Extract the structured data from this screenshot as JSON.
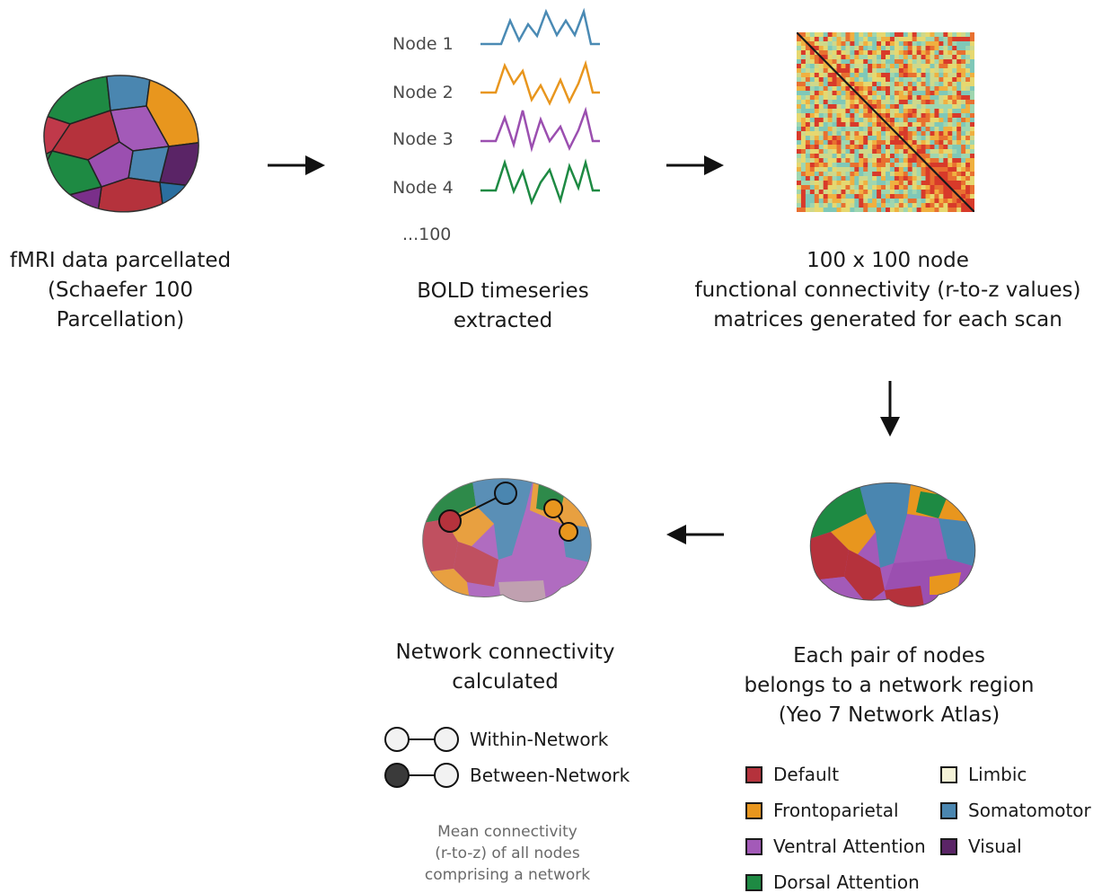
{
  "steps": {
    "parcellation": {
      "lines": [
        "fMRI data parcellated",
        "(Schaefer 100",
        "Parcellation)"
      ]
    },
    "timeseries": {
      "lines": [
        "BOLD timeseries",
        "extracted"
      ]
    },
    "matrix": {
      "lines": [
        "100 x 100 node",
        "functional connectivity (r-to-z values)",
        "matrices generated for each scan"
      ]
    },
    "atlas": {
      "lines": [
        "Each pair of nodes",
        "belongs to  a network region",
        "(Yeo 7 Network Atlas)"
      ]
    },
    "network": {
      "lines": [
        "Network connectivity",
        "calculated"
      ]
    }
  },
  "nodes": [
    {
      "label": "Node 1",
      "color": "#4a8ab4"
    },
    {
      "label": "Node 2",
      "color": "#e8961e"
    },
    {
      "label": "Node 3",
      "color": "#9b4fb0"
    },
    {
      "label": "Node 4",
      "color": "#1e8a43"
    }
  ],
  "nodes_more": "...100",
  "connectivity_legend": [
    {
      "label": "Within-Network",
      "type": "within"
    },
    {
      "label": "Between-Network",
      "type": "between"
    }
  ],
  "mean_note": [
    "Mean connectivity",
    "(r-to-z) of all nodes",
    "comprising a network"
  ],
  "network_legend": [
    {
      "label": "Default",
      "color": "#b5323c"
    },
    {
      "label": "Limbic",
      "color": "#f4f2d6"
    },
    {
      "label": "Frontoparietal",
      "color": "#e8961e"
    },
    {
      "label": "Somatomotor",
      "color": "#4a86b0"
    },
    {
      "label": "Ventral Attention",
      "color": "#a35ab8"
    },
    {
      "label": "Visual",
      "color": "#5a2466"
    },
    {
      "label": "Dorsal Attention",
      "color": "#1e8a43"
    }
  ]
}
